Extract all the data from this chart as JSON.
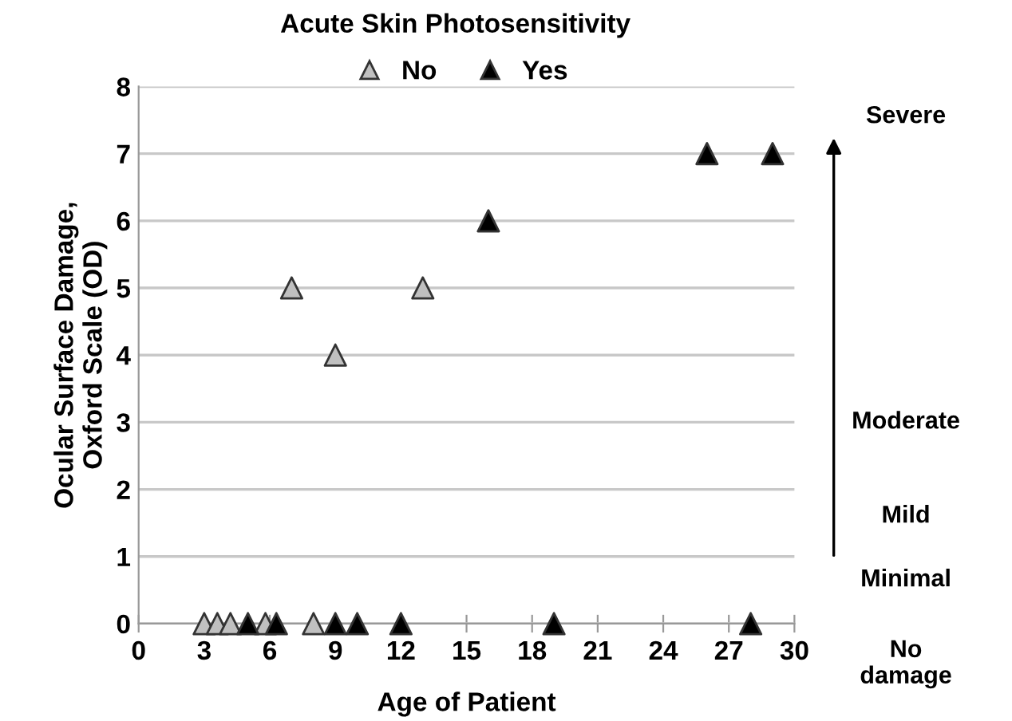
{
  "chart_data": {
    "type": "scatter",
    "title": "Acute Skin Photosensitivity",
    "xlabel": "Age of Patient",
    "ylabel": "Ocular Surface Damage,\nOxford Scale (OD)",
    "series": [
      {
        "name": "No",
        "color": "#c0c0c0",
        "x": [
          3,
          3.6,
          4.2,
          5.8,
          8,
          7,
          9,
          13
        ],
        "values": [
          0,
          0,
          0,
          0,
          0,
          5,
          4,
          5
        ]
      },
      {
        "name": "Yes",
        "color": "#000000",
        "x": [
          5,
          6.3,
          9,
          10,
          12,
          19,
          28,
          16,
          26,
          29
        ],
        "values": [
          0,
          0,
          0,
          0,
          0,
          0,
          0,
          6,
          7,
          7
        ]
      }
    ],
    "xlim": [
      0,
      30
    ],
    "xticks": [
      0,
      3,
      6,
      9,
      12,
      15,
      18,
      21,
      24,
      27,
      30
    ],
    "ylim": [
      0,
      8
    ],
    "yticks": [
      0,
      1,
      2,
      3,
      4,
      5,
      6,
      7,
      8
    ],
    "grid": "y",
    "legend": "top",
    "marker": "triangle",
    "annotations": [
      "Severe",
      "Moderate",
      "Mild",
      "Minimal",
      "No\ndamage"
    ]
  }
}
